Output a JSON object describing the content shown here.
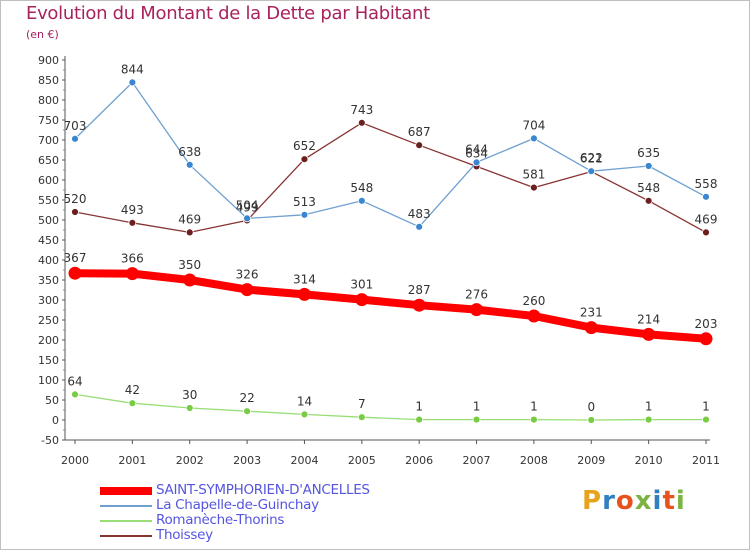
{
  "title": "Evolution du Montant de la Dette par Habitant",
  "unit": "(en €)",
  "logo": "Proxiti",
  "logo_colors": [
    "#e8a31d",
    "#2f7fc1",
    "#e8531d",
    "#7cb342",
    "#2f7fc1",
    "#e8531d",
    "#7cb342"
  ],
  "chart_data": {
    "type": "line",
    "title": "Evolution du Montant de la Dette par Habitant",
    "ylabel": "(en €)",
    "xlabel": "",
    "x": [
      "2000",
      "2001",
      "2002",
      "2003",
      "2004",
      "2005",
      "2006",
      "2007",
      "2008",
      "2009",
      "2010",
      "2011"
    ],
    "ylim": [
      -50,
      900
    ],
    "yticks": [
      -50,
      0,
      50,
      100,
      150,
      200,
      250,
      300,
      350,
      400,
      450,
      500,
      550,
      600,
      650,
      700,
      750,
      800,
      850,
      900
    ],
    "grid": false,
    "legend_position": "bottom-left",
    "series": [
      {
        "name": "SAINT-SYMPHORIEN-D'ANCELLES",
        "color": "#ff0000",
        "point_color": "#ff0000",
        "values": [
          367,
          366,
          350,
          326,
          314,
          301,
          287,
          276,
          260,
          231,
          214,
          203
        ]
      },
      {
        "name": "La Chapelle-de-Guinchay",
        "color": "#6fa0d0",
        "point_color": "#3b86d0",
        "values": [
          703,
          844,
          638,
          504,
          513,
          548,
          483,
          644,
          704,
          622,
          635,
          558
        ]
      },
      {
        "name": "Romanèche-Thorins",
        "color": "#99dd77",
        "point_color": "#77cc44",
        "values": [
          64,
          42,
          30,
          22,
          14,
          7,
          1,
          1,
          1,
          0,
          1,
          1
        ]
      },
      {
        "name": "Thoissey",
        "color": "#883333",
        "point_color": "#6b1f1f",
        "values": [
          520,
          493,
          469,
          499,
          652,
          743,
          687,
          634,
          581,
          621,
          548,
          469
        ]
      }
    ]
  }
}
